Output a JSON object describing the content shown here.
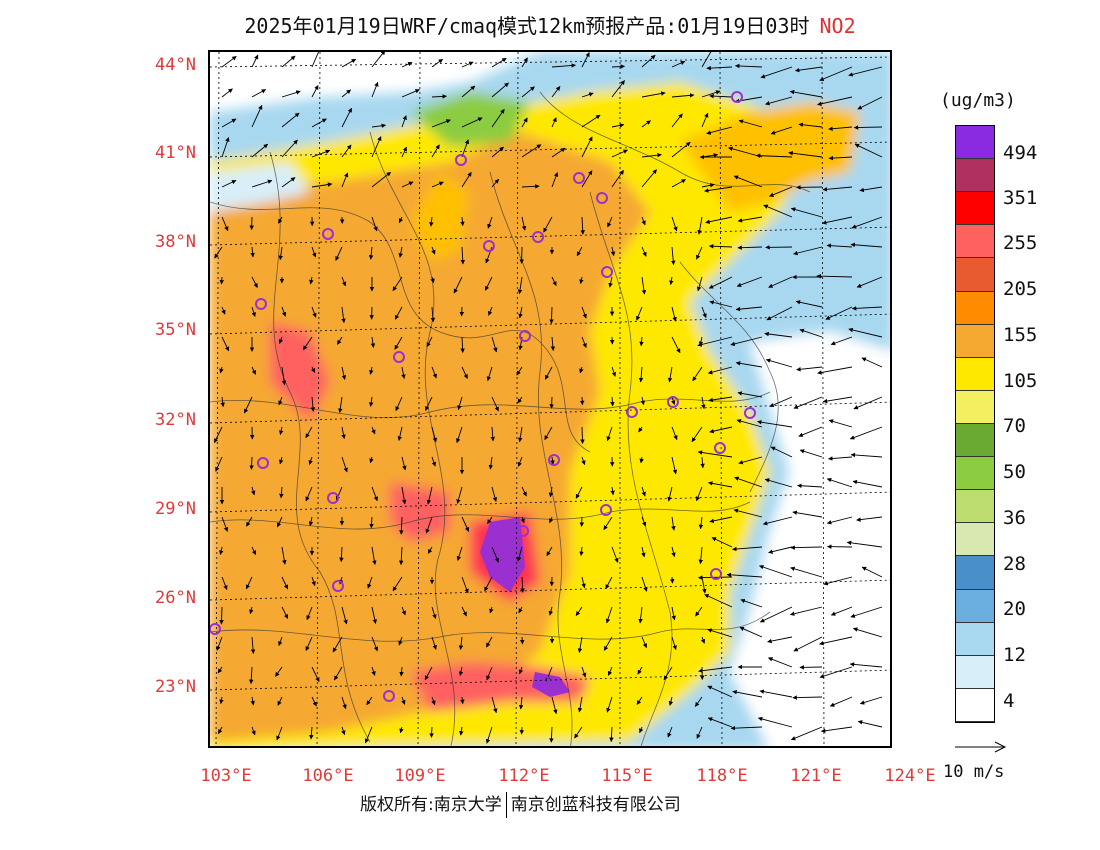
{
  "title": "2025年01月19日WRF/cmaq模式12km预报产品:01月19日03时",
  "pollutant": "NO2",
  "map": {
    "lat_labels": [
      "44°N",
      "41°N",
      "38°N",
      "35°N",
      "32°N",
      "29°N",
      "26°N",
      "23°N"
    ],
    "lon_labels": [
      "103°E",
      "106°E",
      "109°E",
      "112°E",
      "115°E",
      "118°E",
      "121°E",
      "124°E"
    ]
  },
  "legend": {
    "unit": "(ug/m3)",
    "labels": [
      "494",
      "351",
      "255",
      "205",
      "155",
      "105",
      "70",
      "50",
      "36",
      "28",
      "20",
      "12",
      "4"
    ],
    "colors": [
      "#8a2be2",
      "#9b30d0",
      "#b03060",
      "#c71585",
      "#ff0000",
      "#ff3355",
      "#ff6060",
      "#e85a30",
      "#ff8c00",
      "#f5a830",
      "#ffc000",
      "#ffe800",
      "#f0e040",
      "#f2f060",
      "#6aaa30",
      "#8ccc40",
      "#bedd70",
      "#d8e8b0",
      "#e8f0c8",
      "#4a90c8",
      "#6aaee0",
      "#a8d8f0",
      "#d8eef8"
    ],
    "wind_label": "10 m/s"
  },
  "footer": {
    "copyright": "版权所有:南京大学",
    "company": "南京创蓝科技有限公司"
  }
}
